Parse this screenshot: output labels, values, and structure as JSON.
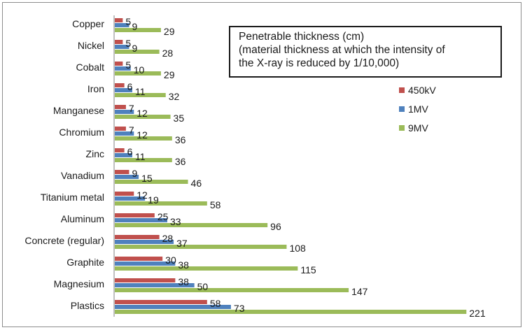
{
  "chart_data": {
    "type": "bar",
    "orientation": "horizontal",
    "title_lines": [
      "Penetrable thickness (cm)",
      "(material thickness at which the intensity of",
      "the X-ray is reduced by 1/10,000)"
    ],
    "categories": [
      "Copper",
      "Nickel",
      "Cobalt",
      "Iron",
      "Manganese",
      "Chromium",
      "Zinc",
      "Vanadium",
      "Titanium metal",
      "Aluminum",
      "Concrete (regular)",
      "Graphite",
      "Magnesium",
      "Plastics"
    ],
    "series": [
      {
        "name": "450kV",
        "color": "#c0504d",
        "values": [
          5,
          5,
          5,
          6,
          7,
          7,
          6,
          9,
          12,
          25,
          28,
          30,
          38,
          58
        ]
      },
      {
        "name": "1MV",
        "color": "#4f81bd",
        "values": [
          9,
          9,
          10,
          11,
          12,
          12,
          11,
          15,
          19,
          33,
          37,
          38,
          50,
          73
        ]
      },
      {
        "name": "9MV",
        "color": "#9bbb59",
        "values": [
          29,
          28,
          29,
          32,
          35,
          36,
          36,
          46,
          58,
          96,
          108,
          115,
          147,
          221
        ]
      }
    ],
    "xlim": [
      0,
      221
    ],
    "legend_position": "right",
    "grid": false
  }
}
